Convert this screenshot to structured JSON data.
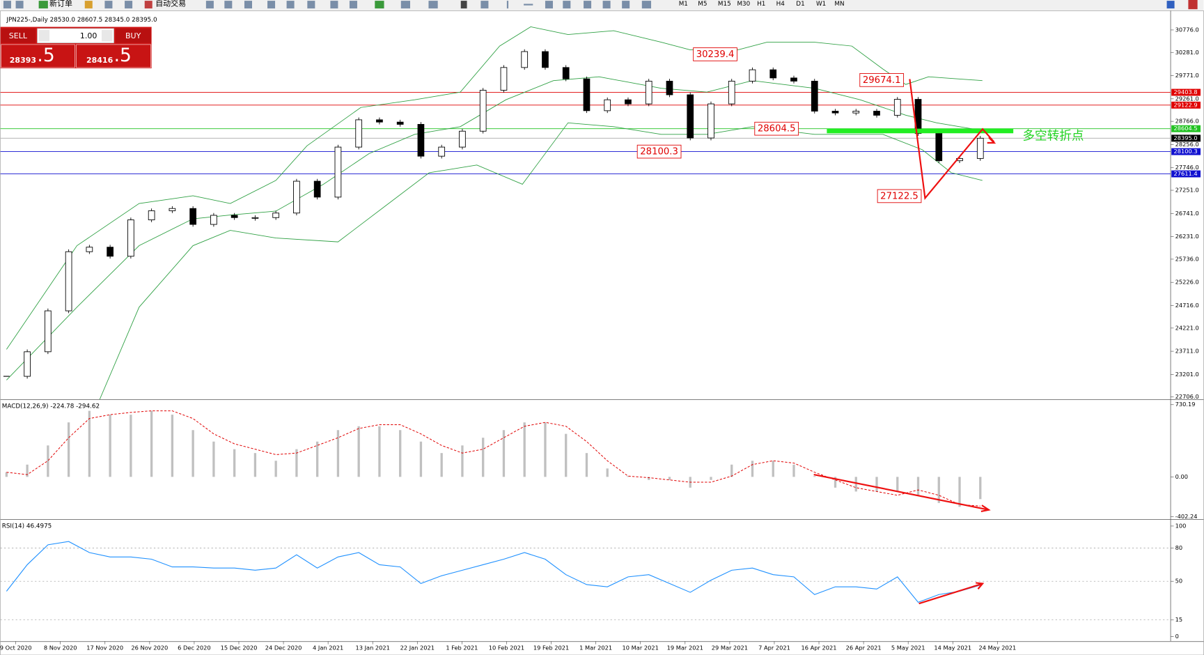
{
  "toolbar": {
    "new_order": "新订单",
    "auto_trading": "自动交易",
    "timeframes": [
      "M1",
      "M5",
      "M15",
      "M30",
      "H1",
      "H4",
      "D1",
      "W1",
      "MN"
    ]
  },
  "one_click": {
    "sell": "SELL",
    "buy": "BUY",
    "lots": "1.00",
    "bid_main": "28393",
    "bid_pip": ".5",
    "ask_main": "28416",
    "ask_pip": ".5"
  },
  "time_axis": [
    "9 Oct 2020",
    "8 Nov 2020",
    "17 Nov 2020",
    "26 Nov 2020",
    "6 Dec 2020",
    "15 Dec 2020",
    "24 Dec 2020",
    "4 Jan 2021",
    "13 Jan 2021",
    "22 Jan 2021",
    "1 Feb 2021",
    "10 Feb 2021",
    "19 Feb 2021",
    "1 Mar 2021",
    "10 Mar 2021",
    "19 Mar 2021",
    "29 Mar 2021",
    "7 Apr 2021",
    "16 Apr 2021",
    "26 Apr 2021",
    "5 May 2021",
    "14 May 2021",
    "24 May 2021"
  ],
  "chart_data": [
    {
      "type": "candlestick",
      "title": "JPN225-,Daily  28530.0 28607.5 28345.0 28395.0",
      "closes": [
        23160,
        23700,
        24600,
        25900,
        26000,
        25800,
        26600,
        26800,
        26850,
        26500,
        26700,
        26650,
        26650,
        26750,
        27450,
        27100,
        28200,
        28800,
        28750,
        28700,
        28000,
        28200,
        28550,
        29450,
        29950,
        30300,
        29950,
        29700,
        29000,
        29240,
        29150,
        29650,
        29350,
        28400,
        29150,
        29650,
        29900,
        29720,
        29650,
        28990,
        28950,
        28990,
        28900,
        29250,
        28500,
        27900,
        27950,
        28395
      ],
      "band_color": "#2ea043",
      "upper": {
        "x": [
          0,
          3.4,
          6.4,
          9,
          10.8,
          13,
          14.5,
          17.1,
          19.7,
          21.9,
          23.8,
          25.3,
          27.1,
          29.3,
          31.6,
          33,
          35.3,
          36.7,
          39,
          40.8,
          42.3,
          43.4,
          44.5,
          47.1
        ],
        "values": [
          23753,
          26033,
          26960,
          27129,
          26960,
          27467,
          28227,
          29071,
          29240,
          29408,
          30421,
          30844,
          30675,
          30759,
          30506,
          30337,
          30337,
          30506,
          30506,
          30421,
          29915,
          29577,
          29746,
          29662
        ]
      },
      "middle": {
        "x": [
          0,
          3.4,
          6.4,
          9,
          10.8,
          13,
          15.3,
          17.5,
          19.7,
          21.9,
          24.1,
          26.4,
          28.6,
          31.6,
          33.8,
          36,
          39,
          41.2,
          43.4,
          44.9,
          47.1
        ],
        "values": [
          23077,
          24681,
          26033,
          26623,
          26707,
          26792,
          27383,
          28058,
          28480,
          28649,
          29240,
          29662,
          29746,
          29493,
          29409,
          29662,
          29493,
          29240,
          28902,
          28733,
          28564
        ]
      },
      "lower": {
        "x": [
          4.5,
          6.4,
          9,
          10.8,
          13,
          16,
          18.2,
          20.4,
          22.7,
          24.9,
          27.1,
          29.3,
          31.6,
          33.8,
          36,
          39,
          42.3,
          44.2,
          45.6,
          47.1
        ],
        "values": [
          22655,
          24681,
          26033,
          26370,
          26201,
          26116,
          26876,
          27636,
          27805,
          27383,
          28733,
          28649,
          28480,
          28480,
          28649,
          28480,
          28480,
          28142,
          27636,
          27467
        ]
      },
      "ylim": [
        22655,
        31130
      ],
      "yticks": [
        {
          "value": 30776,
          "label": "30776.0"
        },
        {
          "value": 30281,
          "label": "30281.0"
        },
        {
          "value": 29771,
          "label": "29771.0"
        },
        {
          "value": 29261,
          "label": "29261.0"
        },
        {
          "value": 28766,
          "label": "28766.0"
        },
        {
          "value": 28256,
          "label": "28256.0"
        },
        {
          "value": 27746,
          "label": "27746.0"
        },
        {
          "value": 27251,
          "label": "27251.0"
        },
        {
          "value": 26741,
          "label": "26741.0"
        },
        {
          "value": 26231,
          "label": "26231.0"
        },
        {
          "value": 25736,
          "label": "25736.0"
        },
        {
          "value": 25226,
          "label": "25226.0"
        },
        {
          "value": 24716,
          "label": "24716.0"
        },
        {
          "value": 24221,
          "label": "24221.0"
        },
        {
          "value": 23711,
          "label": "23711.0"
        },
        {
          "value": 23201,
          "label": "23201.0"
        },
        {
          "value": 22706,
          "label": "22706.0"
        }
      ],
      "levels": [
        {
          "value": 29403.8,
          "color": "#e00000"
        },
        {
          "value": 29122.9,
          "color": "#e00000"
        },
        {
          "value": 28604.5,
          "color": "#22c322"
        },
        {
          "value": {
            "value": 28395,
            "label": "28395.0"
          },
          "color": "#000000"
        },
        {
          "value": 28100.3,
          "color": "#1010d0"
        },
        {
          "value": 27611.4,
          "color": "#1010d0"
        }
      ],
      "annotations": [
        30239.4,
        29674.1,
        28604.5,
        28100.3,
        27122.5
      ],
      "note": "多空转折点",
      "note_color": "#22d322"
    },
    {
      "type": "macd",
      "title": "MACD(12,26,9) -224.78 -294.62",
      "values": [
        47,
        124,
        318,
        551,
        668,
        629,
        629,
        668,
        629,
        473,
        357,
        280,
        241,
        163,
        280,
        357,
        473,
        512,
        512,
        473,
        357,
        241,
        318,
        396,
        473,
        551,
        551,
        435,
        241,
        85,
        8,
        -31,
        -31,
        -109,
        -31,
        124,
        163,
        163,
        124,
        8,
        -109,
        -148,
        -148,
        -148,
        -186,
        -264,
        -303,
        -225
      ],
      "signal": [
        47,
        23,
        163,
        396,
        590,
        629,
        652,
        668,
        668,
        590,
        435,
        334,
        280,
        225,
        241,
        318,
        396,
        489,
        528,
        528,
        435,
        318,
        241,
        280,
        396,
        512,
        551,
        512,
        357,
        163,
        8,
        -8,
        -31,
        -54,
        -54,
        8,
        124,
        163,
        140,
        47,
        -31,
        -109,
        -148,
        -186,
        -132,
        -186,
        -280,
        -295
      ],
      "color": "#c0c0c0",
      "signal_color": "#e00000",
      "ylim": [
        -419,
        769
      ],
      "yticks": [
        730.19,
        {
          "value": 0,
          "label": "0.00"
        },
        -402.24
      ]
    },
    {
      "type": "line",
      "title": "RSI(14) 46.4975",
      "values": [
        41,
        65,
        83,
        86,
        76,
        72,
        72,
        70,
        63,
        63,
        62,
        62,
        60,
        62,
        74,
        62,
        72,
        76,
        65,
        63,
        48,
        55,
        60,
        65,
        70,
        76,
        70,
        56,
        47,
        45,
        54,
        56,
        48,
        40,
        51,
        60,
        62,
        56,
        54,
        38,
        45,
        45,
        43,
        54,
        31,
        38,
        41,
        46.5
      ],
      "color": "#1e90ff",
      "ylim": [
        -4.2,
        104.9
      ],
      "yticks": [
        100,
        80,
        50,
        15,
        0
      ],
      "grid_levels": [
        80,
        50,
        15
      ]
    }
  ]
}
